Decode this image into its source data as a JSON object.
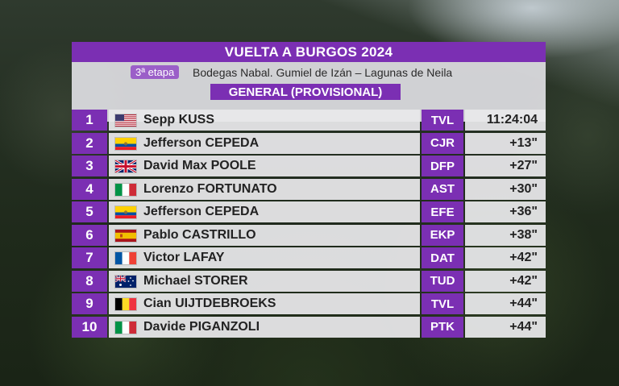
{
  "header": {
    "title": "VUELTA A BURGOS 2024",
    "stage": "3ª etapa",
    "route": "Bodegas Nabal. Gumiel de Izán – Lagunas de Neila",
    "classification": "GENERAL (PROVISIONAL)"
  },
  "colors": {
    "accent": "#7b2fb3",
    "badge": "#9b5fc8",
    "panel": "#e8e8ea"
  },
  "standings": [
    {
      "rank": "1",
      "flag": "usa-flag-icon",
      "name": "Sepp KUSS",
      "team": "TVL",
      "time": "11:24:04"
    },
    {
      "rank": "2",
      "flag": "ecuador-flag-icon",
      "name": "Jefferson CEPEDA",
      "team": "CJR",
      "time": "+13\""
    },
    {
      "rank": "3",
      "flag": "uk-flag-icon",
      "name": "David Max POOLE",
      "team": "DFP",
      "time": "+27\""
    },
    {
      "rank": "4",
      "flag": "italy-flag-icon",
      "name": "Lorenzo FORTUNATO",
      "team": "AST",
      "time": "+30\""
    },
    {
      "rank": "5",
      "flag": "ecuador-flag-icon",
      "name": "Jefferson CEPEDA",
      "team": "EFE",
      "time": "+36\""
    },
    {
      "rank": "6",
      "flag": "spain-flag-icon",
      "name": "Pablo CASTRILLO",
      "team": "EKP",
      "time": "+38\""
    },
    {
      "rank": "7",
      "flag": "france-flag-icon",
      "name": "Victor LAFAY",
      "team": "DAT",
      "time": "+42\""
    },
    {
      "rank": "8",
      "flag": "australia-flag-icon",
      "name": "Michael STORER",
      "team": "TUD",
      "time": "+42\""
    },
    {
      "rank": "9",
      "flag": "belgium-flag-icon",
      "name": "Cian UIJTDEBROEKS",
      "team": "TVL",
      "time": "+44\""
    },
    {
      "rank": "10",
      "flag": "italy-flag-icon",
      "name": "Davide PIGANZOLI",
      "team": "PTK",
      "time": "+44\""
    }
  ]
}
